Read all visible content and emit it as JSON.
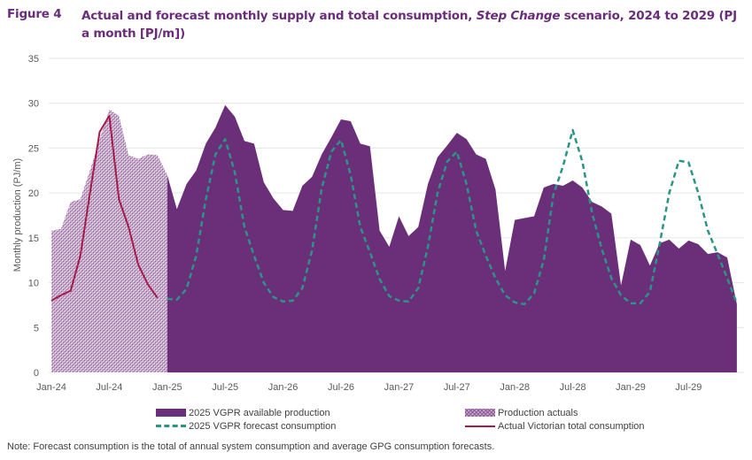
{
  "figure": {
    "label": "Figure 4",
    "title_part1": "Actual and forecast monthly supply and total consumption, ",
    "title_italic": "Step Change",
    "title_part2": " scenario, 2024 to 2029 (PJ a month [PJ/m])"
  },
  "note": "Note: Forecast consumption is the total of annual system consumption and average GPG consumption forecasts.",
  "chart_data": {
    "type": "area",
    "title": "Actual and forecast monthly supply and total consumption, Step Change scenario, 2024 to 2029 (PJ a month [PJ/m])",
    "xlabel": "",
    "ylabel": "Monthly production (PJ/m)",
    "ylim": [
      0,
      35
    ],
    "yticks": [
      0,
      5,
      10,
      15,
      20,
      25,
      30,
      35
    ],
    "xticks": [
      "Jan-24",
      "Jul-24",
      "Jan-25",
      "Jul-25",
      "Jan-26",
      "Jul-26",
      "Jan-27",
      "Jul-27",
      "Jan-28",
      "Jul-28",
      "Jan-29",
      "Jul-29"
    ],
    "x_start": "Jan-24",
    "x_end": "Dec-29",
    "grid": "horizontal",
    "legend_position": "bottom",
    "colors": {
      "available_production": "#6a2f78",
      "production_actuals": "#c9a8d0",
      "forecast_consumption": "#2a9486",
      "actual_consumption": "#a51c47",
      "grid": "#e6e6e6"
    },
    "series": [
      {
        "name": "Production actuals",
        "kind": "area-hatched",
        "start": "Jan-24",
        "values": [
          15.8,
          16.0,
          19.0,
          19.3,
          22.5,
          26.0,
          29.3,
          28.6,
          24.2,
          23.8,
          24.3,
          24.2,
          22.0
        ]
      },
      {
        "name": "2025 VGPR available production",
        "kind": "area",
        "start": "Jan-25",
        "values": [
          22.0,
          18.2,
          21.0,
          22.5,
          25.5,
          27.3,
          29.8,
          28.5,
          25.8,
          25.5,
          21.2,
          19.4,
          18.1,
          18.0,
          20.8,
          21.8,
          24.3,
          26.2,
          28.2,
          28.0,
          25.5,
          25.2,
          15.8,
          14.0,
          17.4,
          15.2,
          16.2,
          21.0,
          24.0,
          25.3,
          26.7,
          26.0,
          24.3,
          23.8,
          20.4,
          11.3,
          17.0,
          17.2,
          17.4,
          20.6,
          21.0,
          20.8,
          21.4,
          20.6,
          19.0,
          18.5,
          17.7,
          9.7,
          14.8,
          14.2,
          11.9,
          14.4,
          14.8,
          13.8,
          14.7,
          14.3,
          13.2,
          13.4,
          12.8,
          7.6
        ]
      },
      {
        "name": "2025 VGPR forecast consumption",
        "kind": "dashed-line",
        "start": "Jan-25",
        "values": [
          8.2,
          8.1,
          9.3,
          13.0,
          19.3,
          24.3,
          26.0,
          22.3,
          16.2,
          13.0,
          10.0,
          8.4,
          7.9,
          8.0,
          9.4,
          13.6,
          20.5,
          24.6,
          25.9,
          22.0,
          16.2,
          13.4,
          10.4,
          8.5,
          8.0,
          7.9,
          9.4,
          14.0,
          20.0,
          23.5,
          24.6,
          21.0,
          15.8,
          13.0,
          10.5,
          8.6,
          7.8,
          7.6,
          8.8,
          12.5,
          19.8,
          23.0,
          27.0,
          23.5,
          17.8,
          13.8,
          10.5,
          8.6,
          7.7,
          7.7,
          9.0,
          14.3,
          20.0,
          23.6,
          23.4,
          20.0,
          15.8,
          13.2,
          10.5,
          7.7
        ]
      },
      {
        "name": "Actual Victorian total consumption",
        "kind": "line",
        "start": "Jan-24",
        "values": [
          8.0,
          8.6,
          9.1,
          13.0,
          20.0,
          26.8,
          28.6,
          19.3,
          16.2,
          12.0,
          9.8,
          8.3
        ]
      }
    ]
  },
  "legend": {
    "items": [
      {
        "label": "2025 VGPR available production",
        "icon": "solid-swatch"
      },
      {
        "label": "Production actuals",
        "icon": "hatched-swatch"
      },
      {
        "label": "2025 VGPR forecast consumption",
        "icon": "dashed-line"
      },
      {
        "label": "Actual Victorian total consumption",
        "icon": "solid-line"
      }
    ]
  }
}
